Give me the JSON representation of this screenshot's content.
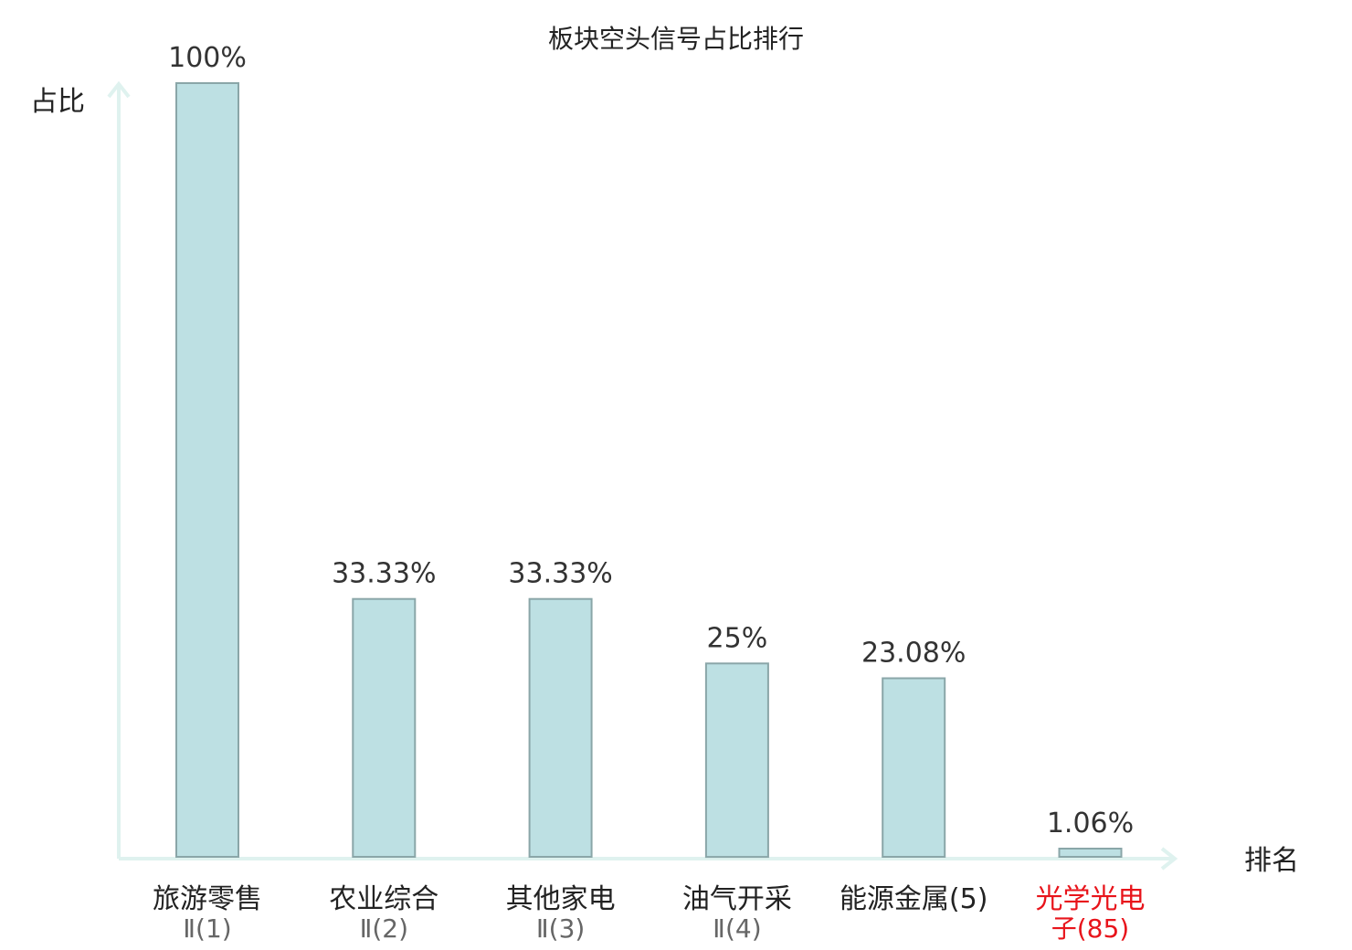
{
  "chart_data": {
    "type": "bar",
    "title": "板块空头信号占比排行",
    "ylabel": "占比",
    "xlabel": "排名",
    "ylim": [
      0,
      100
    ],
    "categories": [
      {
        "name": "旅游零售",
        "sub": "Ⅱ(1)",
        "highlight": false
      },
      {
        "name": "农业综合",
        "sub": "Ⅱ(2)",
        "highlight": false
      },
      {
        "name": "其他家电",
        "sub": "Ⅱ(3)",
        "highlight": false
      },
      {
        "name": "油气开采",
        "sub": "Ⅱ(4)",
        "highlight": false
      },
      {
        "name": "能源金属(5)",
        "sub": "",
        "highlight": false
      },
      {
        "name": "光学光电",
        "sub": "子(85)",
        "highlight": true
      }
    ],
    "values": [
      100,
      33.33,
      33.33,
      25,
      23.08,
      1.06
    ],
    "value_labels": [
      "100%",
      "33.33%",
      "33.33%",
      "25%",
      "23.08%",
      "1.06%"
    ],
    "grid": false,
    "colors": {
      "bar_fill": "#bde0e3",
      "bar_stroke": "#8aa6a8",
      "axis": "#dff2ef",
      "highlight": "#e8141b"
    }
  }
}
